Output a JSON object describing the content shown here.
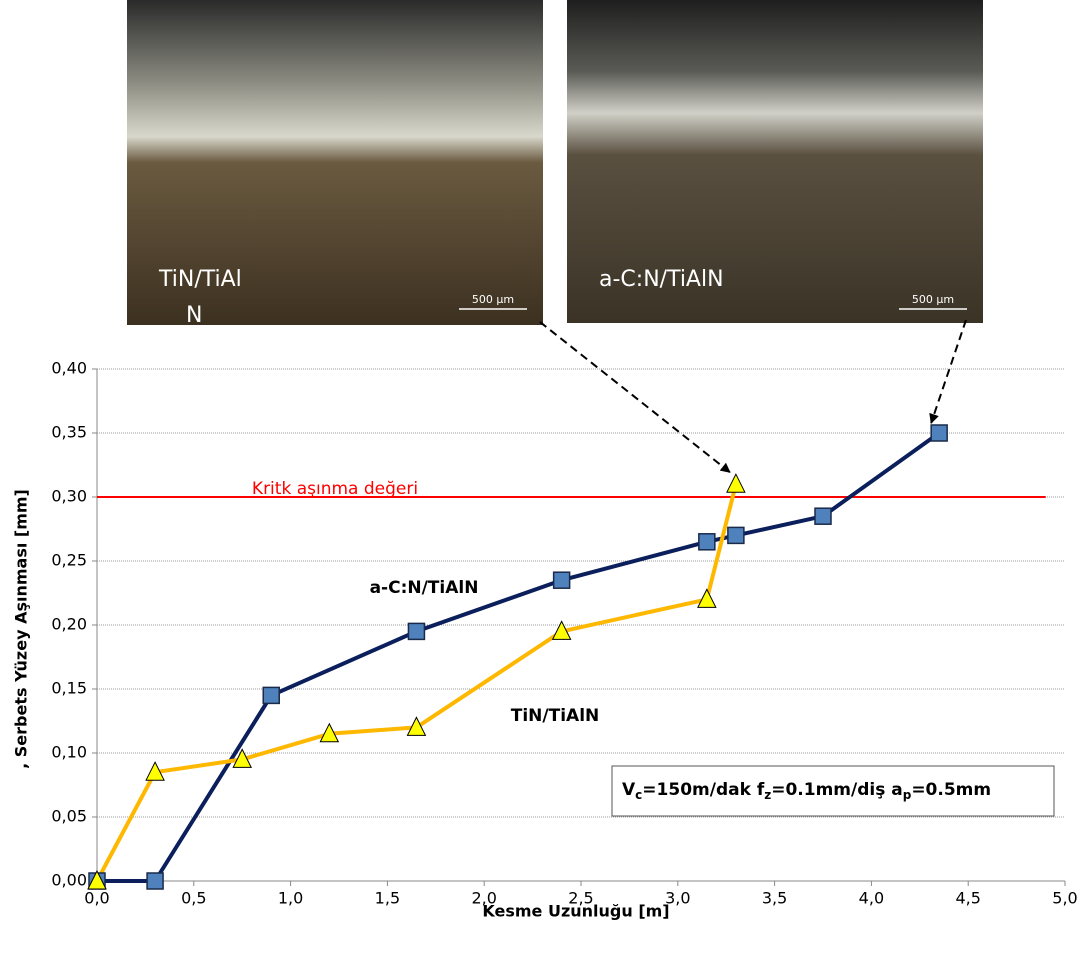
{
  "chart_data": {
    "type": "line",
    "x_axis_label": "Kesme Uzunluğu [m]",
    "y_axis_label": ", Serbets Yüzey Aşınması [mm]",
    "xlim": [
      0,
      5
    ],
    "ylim": [
      0,
      0.4
    ],
    "xticks": [
      {
        "value": 0,
        "label": "0,0"
      },
      {
        "value": 0.5,
        "label": "0,5"
      },
      {
        "value": 1,
        "label": "1,0"
      },
      {
        "value": 1.5,
        "label": "1,5"
      },
      {
        "value": 2,
        "label": "2,0"
      },
      {
        "value": 2.5,
        "label": "2,5"
      },
      {
        "value": 3,
        "label": "3,0"
      },
      {
        "value": 3.5,
        "label": "3,5"
      },
      {
        "value": 4,
        "label": "4,0"
      },
      {
        "value": 4.5,
        "label": "4,5"
      },
      {
        "value": 5,
        "label": "5,0"
      }
    ],
    "yticks": [
      {
        "value": 0,
        "label": "0,00"
      },
      {
        "value": 0.05,
        "label": "0,05"
      },
      {
        "value": 0.1,
        "label": "0,10"
      },
      {
        "value": 0.15,
        "label": "0,15"
      },
      {
        "value": 0.2,
        "label": "0,20"
      },
      {
        "value": 0.25,
        "label": "0,25"
      },
      {
        "value": 0.3,
        "label": "0,30"
      },
      {
        "value": 0.35,
        "label": "0,35"
      },
      {
        "value": 0.4,
        "label": "0,40"
      }
    ],
    "grid": true,
    "series": [
      {
        "name": "a-C:N/TiAlN",
        "color": "#0b1f5c",
        "marker": "square",
        "marker_color": "#4f81bd",
        "x": [
          0,
          0.3,
          0.9,
          1.65,
          2.4,
          3.15,
          3.3,
          3.75,
          4.35
        ],
        "values": [
          0,
          0,
          0.145,
          0.195,
          0.235,
          0.265,
          0.27,
          0.285,
          0.35
        ]
      },
      {
        "name": "TiN/TiAlN",
        "color": "#ffb800",
        "marker": "triangle",
        "marker_color": "#ffff00",
        "x": [
          0,
          0.3,
          0.75,
          1.2,
          1.65,
          2.4,
          3.15,
          3.3
        ],
        "values": [
          0,
          0.085,
          0.095,
          0.115,
          0.12,
          0.195,
          0.22,
          0.31
        ]
      }
    ],
    "reference_line": {
      "value": 0.3,
      "x_end": 4.9,
      "label": "Kritk aşınma  değeri",
      "color": "#ff0000"
    },
    "conditions": [
      "V",
      "c",
      "=150m/dak f",
      "z",
      "=0.1mm/diş a",
      "p",
      "=0.5mm"
    ],
    "images": [
      {
        "label_lines": [
          "TiN/TiAl",
          "N"
        ],
        "scale": "500 µm"
      },
      {
        "label_lines": [
          "a-C:N/TiAlN"
        ],
        "scale": "500 µm"
      }
    ]
  }
}
